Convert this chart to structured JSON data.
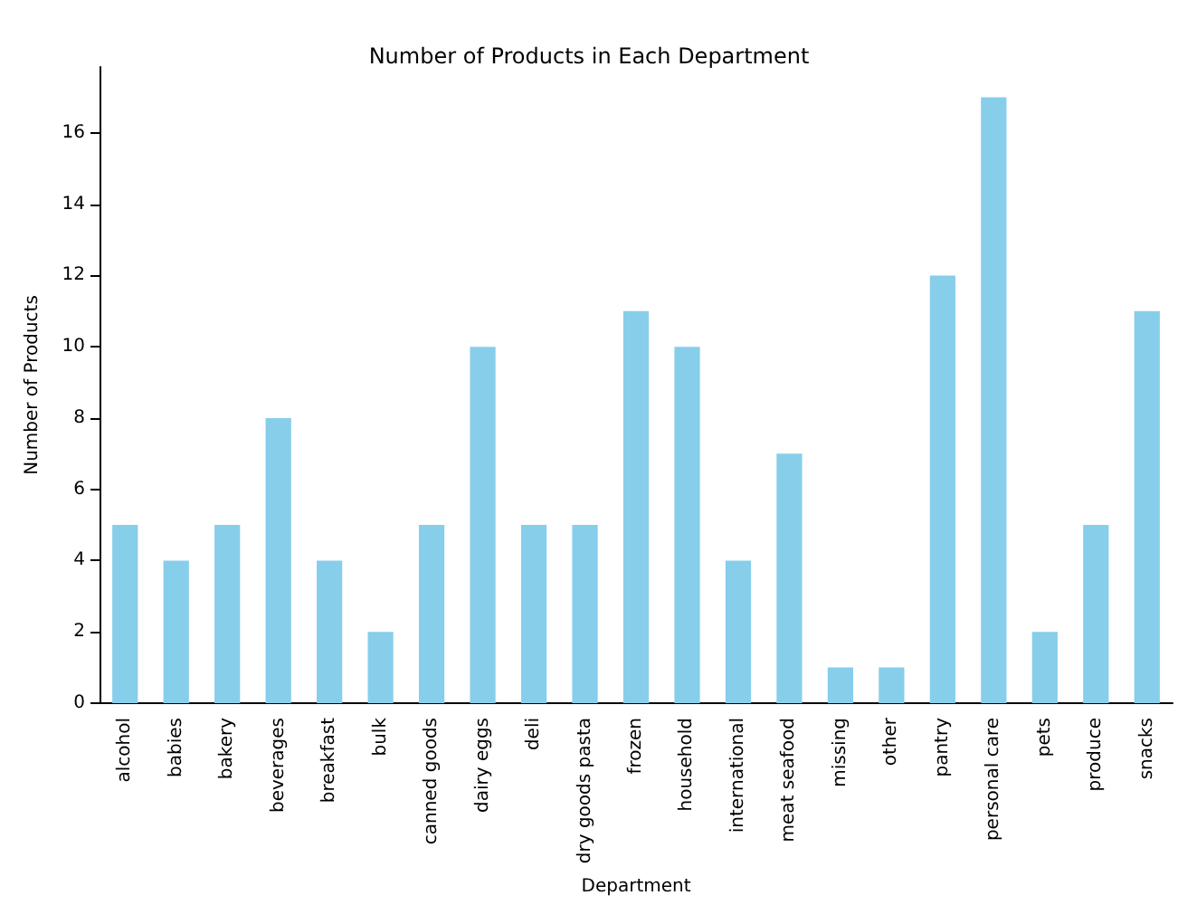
{
  "chart_data": {
    "type": "bar",
    "title": "Number of Products in Each Department",
    "xlabel": "Department",
    "ylabel": "Number of Products",
    "categories": [
      "alcohol",
      "babies",
      "bakery",
      "beverages",
      "breakfast",
      "bulk",
      "canned goods",
      "dairy eggs",
      "deli",
      "dry goods pasta",
      "frozen",
      "household",
      "international",
      "meat seafood",
      "missing",
      "other",
      "pantry",
      "personal care",
      "pets",
      "produce",
      "snacks"
    ],
    "values": [
      5,
      4,
      5,
      8,
      4,
      2,
      5,
      10,
      5,
      5,
      11,
      10,
      4,
      7,
      1,
      1,
      12,
      17,
      2,
      5,
      11
    ],
    "color": "#87ceeb",
    "ylim": [
      0,
      17.85
    ],
    "yticks": [
      0,
      2,
      4,
      6,
      8,
      10,
      12,
      14,
      16
    ],
    "grid": false
  }
}
